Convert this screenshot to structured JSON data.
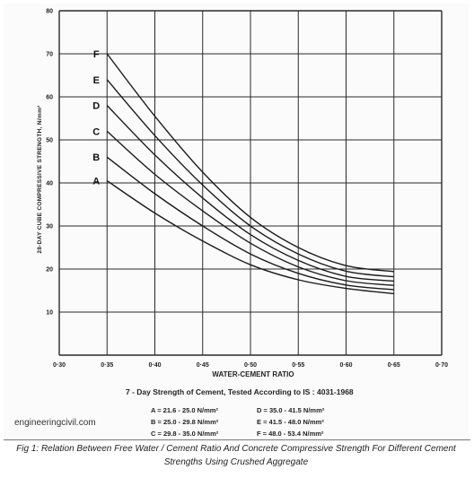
{
  "chart_data": {
    "type": "line",
    "ylabel": "28-DAY CUBE COMPRESSIVE STRENGTH, N/mm²",
    "xlabel": "WATER-CEMENT RATIO",
    "xlim": [
      0.3,
      0.7
    ],
    "ylim": [
      0,
      80
    ],
    "x_ticks": [
      "0·30",
      "0·35",
      "0·40",
      "0·45",
      "0·50",
      "0·55",
      "0·60",
      "0·65",
      "0·70"
    ],
    "y_ticks": [
      "10",
      "20",
      "30",
      "40",
      "50",
      "60",
      "70",
      "80"
    ],
    "grid": true,
    "series": [
      {
        "name": "A",
        "x": [
          0.35,
          0.4,
          0.45,
          0.5,
          0.55,
          0.6,
          0.65
        ],
        "y": [
          40.5,
          33.0,
          26.5,
          21.0,
          17.5,
          15.5,
          14.3
        ]
      },
      {
        "name": "B",
        "x": [
          0.35,
          0.4,
          0.45,
          0.5,
          0.55,
          0.6,
          0.65
        ],
        "y": [
          46.0,
          37.5,
          30.0,
          23.5,
          19.0,
          16.3,
          15.2
        ]
      },
      {
        "name": "C",
        "x": [
          0.35,
          0.4,
          0.45,
          0.5,
          0.55,
          0.6,
          0.65
        ],
        "y": [
          52.0,
          42.0,
          33.5,
          26.0,
          20.5,
          17.3,
          16.2
        ]
      },
      {
        "name": "D",
        "x": [
          0.35,
          0.4,
          0.45,
          0.5,
          0.55,
          0.6,
          0.65
        ],
        "y": [
          58.0,
          46.5,
          36.5,
          28.0,
          22.0,
          18.3,
          17.2
        ]
      },
      {
        "name": "E",
        "x": [
          0.35,
          0.4,
          0.45,
          0.5,
          0.55,
          0.6,
          0.65
        ],
        "y": [
          64.0,
          51.0,
          39.5,
          30.0,
          23.5,
          19.5,
          18.2
        ]
      },
      {
        "name": "F",
        "x": [
          0.35,
          0.4,
          0.45,
          0.5,
          0.55,
          0.6,
          0.65
        ],
        "y": [
          70.0,
          55.5,
          42.5,
          32.0,
          25.0,
          20.8,
          19.4
        ]
      }
    ]
  },
  "subtitle": "7 - Day Strength of Cement, Tested According to IS : 4031-1968",
  "legend": [
    "A = 21.6 - 25.0 N/mm²",
    "B = 25.0 - 29.8 N/mm²",
    "C = 29.8 - 35.0 N/mm²",
    "D = 35.0 - 41.5 N/mm²",
    "E = 41.5 - 48.0 N/mm²",
    "F = 48.0 - 53.4 N/mm²"
  ],
  "watermark": "engineeringcivil.com",
  "caption_line1": "Fig 1: Relation Between Free Water / Cement Ratio And Concrete Compressive Strength For Different Cement",
  "caption_line2": "Strengths Using Crushed Aggregate",
  "colors": {
    "line": "#1a1a1a",
    "grid": "#2a2a2a",
    "background": "#fbfbfb"
  }
}
